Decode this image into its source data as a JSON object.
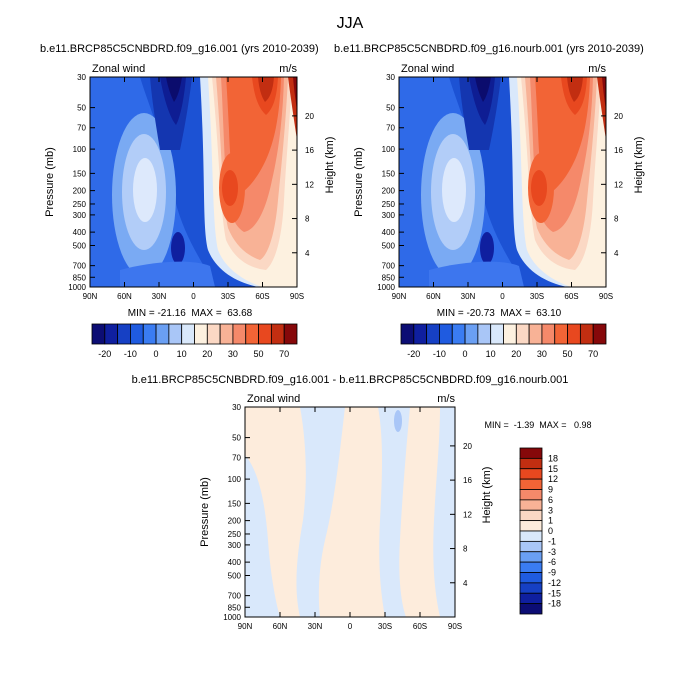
{
  "figure_title": "JJA",
  "chart_data": [
    {
      "type": "heatmap",
      "title": "b.e11.BRCP85C5CNBDRD.f09_g16.001 (yrs 2010-2039)",
      "left_label": "Zonal wind",
      "right_label": "m/s",
      "ylabel": "Pressure (mb)",
      "ylabel_right": "Height (km)",
      "xticks": [
        "90N",
        "60N",
        "30N",
        "0",
        "30S",
        "60S",
        "90S"
      ],
      "yticks": [
        "30",
        "50",
        "70",
        "100",
        "150",
        "200",
        "250",
        "300",
        "400",
        "500",
        "700",
        "850",
        "1000"
      ],
      "yticks_right": [
        "20",
        "16",
        "12",
        "8",
        "4"
      ],
      "min_value": -21.16,
      "max_value": 63.68,
      "stats_text": "MIN = -21.16  MAX =  63.68",
      "colorbar": {
        "orientation": "horizontal",
        "labels": [
          "-20",
          "-10",
          "0",
          "10",
          "20",
          "30",
          "50",
          "70"
        ],
        "colors": [
          "#0c0d74",
          "#0f1f9f",
          "#1640c4",
          "#1f5be0",
          "#3a7cf2",
          "#6a9ff3",
          "#a9c6f7",
          "#d9e8fb",
          "#fdf1e0",
          "#fbd8c4",
          "#f8b296",
          "#f5896a",
          "#f26436",
          "#e8481f",
          "#c22e11",
          "#86080a"
        ]
      }
    },
    {
      "type": "heatmap",
      "title": "b.e11.BRCP85C5CNBDRD.f09_g16.nourb.001 (yrs 2010-2039)",
      "left_label": "Zonal wind",
      "right_label": "m/s",
      "ylabel": "Pressure (mb)",
      "ylabel_right": "Height (km)",
      "xticks": [
        "90N",
        "60N",
        "30N",
        "0",
        "30S",
        "60S",
        "90S"
      ],
      "yticks": [
        "30",
        "50",
        "70",
        "100",
        "150",
        "200",
        "250",
        "300",
        "400",
        "500",
        "700",
        "850",
        "1000"
      ],
      "yticks_right": [
        "20",
        "16",
        "12",
        "8",
        "4"
      ],
      "min_value": -20.73,
      "max_value": 63.1,
      "stats_text": "MIN = -20.73  MAX =  63.10",
      "colorbar": {
        "orientation": "horizontal",
        "labels": [
          "-20",
          "-10",
          "0",
          "10",
          "20",
          "30",
          "50",
          "70"
        ],
        "colors": [
          "#0c0d74",
          "#0f1f9f",
          "#1640c4",
          "#1f5be0",
          "#3a7cf2",
          "#6a9ff3",
          "#a9c6f7",
          "#d9e8fb",
          "#fdf1e0",
          "#fbd8c4",
          "#f8b296",
          "#f5896a",
          "#f26436",
          "#e8481f",
          "#c22e11",
          "#86080a"
        ]
      }
    },
    {
      "type": "heatmap",
      "title": "b.e11.BRCP85C5CNBDRD.f09_g16.001 - b.e11.BRCP85C5CNBDRD.f09_g16.nourb.001",
      "left_label": "Zonal wind",
      "right_label": "m/s",
      "ylabel": "Pressure (mb)",
      "ylabel_right": "Height (km)",
      "xticks": [
        "90N",
        "60N",
        "30N",
        "0",
        "30S",
        "60S",
        "90S"
      ],
      "yticks": [
        "30",
        "50",
        "70",
        "100",
        "150",
        "200",
        "250",
        "300",
        "400",
        "500",
        "700",
        "850",
        "1000"
      ],
      "yticks_right": [
        "20",
        "16",
        "12",
        "8",
        "4"
      ],
      "min_value": -1.39,
      "max_value": 0.98,
      "stats_text": "MIN =  -1.39  MAX =   0.98",
      "colorbar": {
        "orientation": "vertical",
        "labels": [
          "18",
          "15",
          "12",
          "9",
          "6",
          "3",
          "1",
          "0",
          "-1",
          "-3",
          "-6",
          "-9",
          "-12",
          "-15",
          "-18"
        ],
        "colors": [
          "#86080a",
          "#c22e11",
          "#e8481f",
          "#f26436",
          "#f5896a",
          "#f8b296",
          "#fbd8c4",
          "#fdecdc",
          "#d9e8fb",
          "#a9c6f7",
          "#6a9ff3",
          "#3a7cf2",
          "#1f5be0",
          "#1640c4",
          "#0f1f9f",
          "#0c0d74"
        ]
      }
    }
  ]
}
